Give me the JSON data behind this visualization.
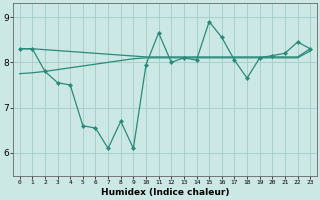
{
  "x": [
    0,
    1,
    2,
    3,
    4,
    5,
    6,
    7,
    8,
    9,
    10,
    11,
    12,
    13,
    14,
    15,
    16,
    17,
    18,
    19,
    20,
    21,
    22,
    23
  ],
  "y_main": [
    8.3,
    8.3,
    7.8,
    7.55,
    7.5,
    6.6,
    6.55,
    6.1,
    6.7,
    6.1,
    7.95,
    8.65,
    8.0,
    8.1,
    8.05,
    8.9,
    8.55,
    8.05,
    7.65,
    8.1,
    8.15,
    8.2,
    8.45,
    8.3
  ],
  "y_upper": [
    8.3,
    8.3,
    8.28,
    8.26,
    8.24,
    8.22,
    8.2,
    8.18,
    8.16,
    8.14,
    8.12,
    8.12,
    8.12,
    8.12,
    8.12,
    8.12,
    8.12,
    8.12,
    8.12,
    8.12,
    8.12,
    8.12,
    8.12,
    8.3
  ],
  "y_lower": [
    7.75,
    7.77,
    7.8,
    7.84,
    7.88,
    7.92,
    7.96,
    8.0,
    8.04,
    8.08,
    8.1,
    8.1,
    8.1,
    8.1,
    8.1,
    8.1,
    8.1,
    8.1,
    8.1,
    8.1,
    8.1,
    8.1,
    8.1,
    8.25
  ],
  "color": "#2a8a78",
  "bg_color": "#cce8e5",
  "grid_color": "#a8d0cc",
  "xlabel": "Humidex (Indice chaleur)",
  "ylim": [
    5.5,
    9.3
  ],
  "xlim": [
    -0.5,
    23.5
  ],
  "yticks": [
    6,
    7,
    8,
    9
  ],
  "xticks": [
    0,
    1,
    2,
    3,
    4,
    5,
    6,
    7,
    8,
    9,
    10,
    11,
    12,
    13,
    14,
    15,
    16,
    17,
    18,
    19,
    20,
    21,
    22,
    23
  ]
}
